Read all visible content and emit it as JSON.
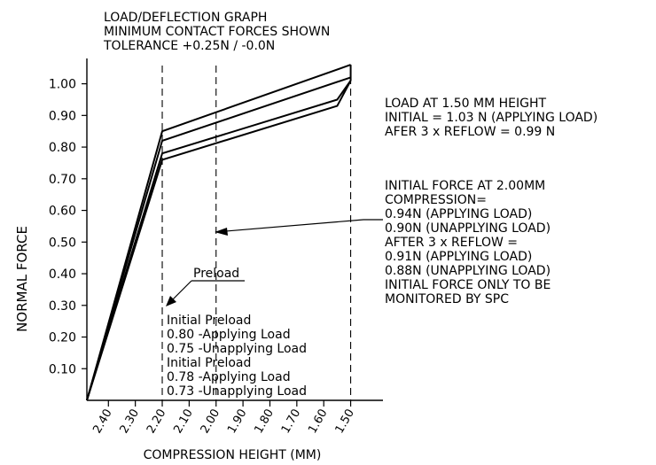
{
  "chart_data": {
    "type": "line",
    "title_lines": [
      "LOAD/DEFLECTION GRAPH",
      "MINIMUM CONTACT FORCES SHOWN",
      "TOLERANCE +0.25N / -0.0N"
    ],
    "xlabel": "COMPRESSION HEIGHT (MM)",
    "ylabel": "NORMAL FORCE",
    "x_ticks": [
      "2.40",
      "2.30",
      "2.20",
      "2.10",
      "2.00",
      "1.90",
      "1.80",
      "1.70",
      "1.60",
      "1.50"
    ],
    "y_ticks": [
      "1.00",
      "0.90",
      "0.80",
      "0.70",
      "0.60",
      "0.50",
      "0.40",
      "0.30",
      "0.20",
      "0.10"
    ],
    "xlim": [
      2.48,
      1.38
    ],
    "ylim": [
      0.0,
      1.08
    ],
    "series": [
      {
        "x": [
          2.48,
          2.2,
          1.5
        ],
        "y": [
          0.0,
          0.85,
          1.06
        ]
      },
      {
        "x": [
          2.48,
          2.2,
          1.5
        ],
        "y": [
          0.0,
          0.82,
          1.02
        ]
      },
      {
        "x": [
          2.48,
          2.2,
          1.55,
          1.5
        ],
        "y": [
          0.0,
          0.78,
          0.95,
          1.01
        ]
      },
      {
        "x": [
          2.48,
          2.2,
          1.55,
          1.5
        ],
        "y": [
          0.0,
          0.76,
          0.93,
          1.01
        ]
      }
    ],
    "reference_lines_x": [
      2.2,
      2.0,
      1.5
    ],
    "annotations": {
      "load_block": [
        "LOAD AT 1.50 MM HEIGHT",
        "INITIAL = 1.03 N (APPLYING LOAD)",
        "AFER 3 x REFLOW = 0.99 N"
      ],
      "initial_force_block": [
        "INITIAL FORCE AT 2.00MM",
        "COMPRESSION=",
        "0.94N (APPLYING LOAD)",
        "0.90N (UNAPPLYING LOAD)",
        "AFTER 3 x REFLOW =",
        "0.91N (APPLYING LOAD)",
        "0.88N (UNAPPLYING LOAD)",
        "INITIAL FORCE ONLY TO BE",
        "MONITORED BY SPC"
      ],
      "preload_label": "Preload",
      "preload_block": [
        "Initial Preload",
        "0.80 -Applying Load",
        "0.75 -Unapplying Load",
        "Initial Preload",
        "0.78 -Applying Load",
        "0.73 -Unapplying Load"
      ]
    }
  }
}
